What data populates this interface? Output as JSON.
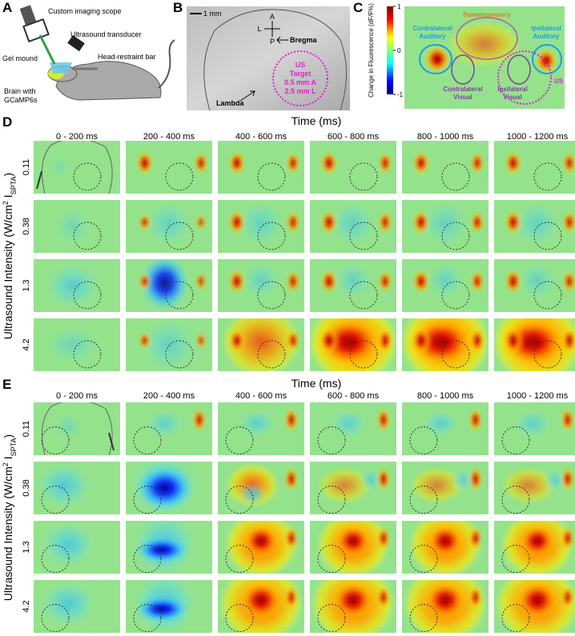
{
  "panel_a": {
    "label": "A",
    "scope": "Custom imaging scope",
    "transducer": "Ultrasound transducer",
    "gel": "Gel mound",
    "bar": "Head-restraint bar",
    "brain": [
      "Brain with",
      "GCaMP6s"
    ]
  },
  "panel_b": {
    "label": "B",
    "scale_bar": "1 mm",
    "compass": {
      "anterior": "A",
      "lateral": "L",
      "posterior": "P"
    },
    "bregma": "Bregma",
    "lambda": "Lambda",
    "target": [
      "US",
      "Target",
      "0.5 mm A",
      "2.5 mm L"
    ]
  },
  "panel_c": {
    "label": "C",
    "colorbar": {
      "title": "Change in Fluorescence (dF/F%)",
      "ticks": [
        1,
        0,
        -1
      ]
    },
    "regions": {
      "somatosensory": "Somatosensory",
      "contra_auditory": [
        "Contralateral",
        "Auditory"
      ],
      "ipsi_auditory": [
        "Ipsilateral",
        "Auditory"
      ],
      "contra_visual": [
        "Contralateral",
        "Visual"
      ],
      "ipsi_visual": [
        "Ipsilateral",
        "Visual"
      ],
      "us": "US"
    }
  },
  "panel_d": {
    "label": "D",
    "x_title": "Time (ms)",
    "columns": [
      "0 - 200 ms",
      "200 - 400 ms",
      "400 - 600 ms",
      "600 - 800 ms",
      "800 - 1000 ms",
      "1000 - 1200 ms"
    ],
    "y_title": {
      "prefix": "Ultrasound Intensity (W/cm",
      "sup": "2",
      "mid": " I",
      "sub": "SPTA",
      "suffix": ")"
    },
    "rows": [
      "0.11",
      "0.38",
      "1.3",
      "4.2"
    ]
  },
  "panel_e": {
    "label": "E",
    "x_title": "Time (ms)",
    "columns": [
      "0 - 200 ms",
      "200 - 400 ms",
      "400 - 600 ms",
      "600 - 800 ms",
      "800 - 1000 ms",
      "1000 - 1200 ms"
    ],
    "y_title": {
      "prefix": "Ultrasound Intensity (W/cm",
      "sup": "2",
      "mid": " I",
      "sub": "SPTA",
      "suffix": ")"
    },
    "rows": [
      "0.11",
      "0.38",
      "1.3",
      "4.2"
    ]
  }
}
